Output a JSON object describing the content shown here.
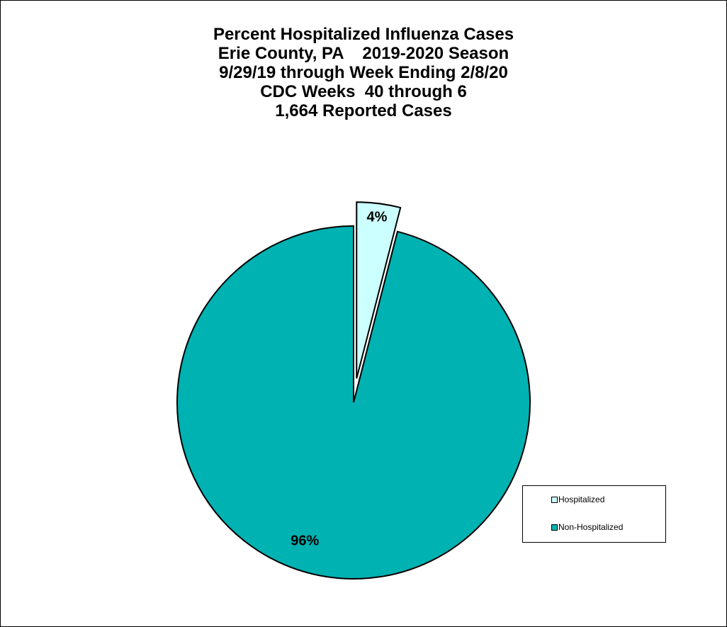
{
  "chart_data": {
    "type": "pie",
    "title_lines": [
      "Percent Hospitalized Influenza Cases",
      "Erie County, PA    2019-2020 Season",
      "9/29/19 through Week Ending 2/8/20",
      "CDC Weeks  40 through 6",
      "1,664 Reported Cases"
    ],
    "slices": [
      {
        "name": "Hospitalized",
        "value": 4,
        "label": "4%",
        "color": "#ccffff",
        "exploded": true
      },
      {
        "name": "Non-Hospitalized",
        "value": 96,
        "label": "96%",
        "color": "#00b2b2",
        "exploded": false
      }
    ],
    "start_angle": "12 o'clock",
    "direction": "clockwise",
    "legend": {
      "placement": "right",
      "entries": [
        "Hospitalized",
        "Non-Hospitalized"
      ]
    }
  }
}
